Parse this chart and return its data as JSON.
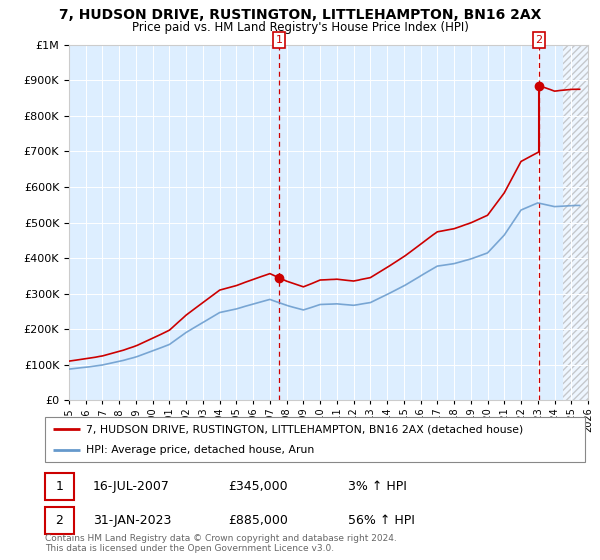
{
  "title": "7, HUDSON DRIVE, RUSTINGTON, LITTLEHAMPTON, BN16 2AX",
  "subtitle": "Price paid vs. HM Land Registry's House Price Index (HPI)",
  "sale1_date": "16-JUL-2007",
  "sale1_price": 345000,
  "sale1_hpi": "3% ↑ HPI",
  "sale2_date": "31-JAN-2023",
  "sale2_price": 885000,
  "sale2_hpi": "56% ↑ HPI",
  "legend_line1": "7, HUDSON DRIVE, RUSTINGTON, LITTLEHAMPTON, BN16 2AX (detached house)",
  "legend_line2": "HPI: Average price, detached house, Arun",
  "footer": "Contains HM Land Registry data © Crown copyright and database right 2024.\nThis data is licensed under the Open Government Licence v3.0.",
  "line_color_red": "#cc0000",
  "line_color_blue": "#6699cc",
  "bg_color": "#ddeeff",
  "ylim": [
    0,
    1000000
  ],
  "xlim_start": 1995.0,
  "xlim_end": 2026.0,
  "sale1_x": 2007.54,
  "sale2_x": 2023.08,
  "hatch_start": 2024.5
}
